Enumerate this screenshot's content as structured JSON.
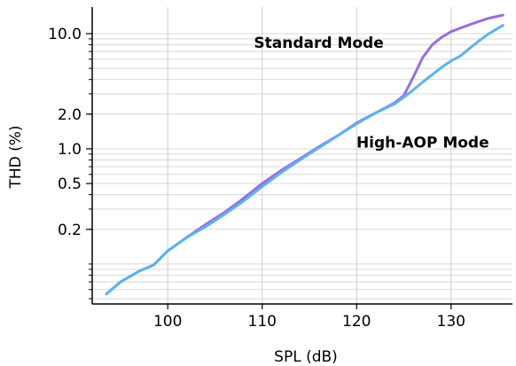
{
  "chart_data": {
    "type": "line",
    "title": "",
    "xlabel": "SPL (dB)",
    "ylabel": "THD (%)",
    "xlim": [
      92,
      136.5
    ],
    "ylim": [
      0.045,
      17
    ],
    "yscale": "log",
    "grid": true,
    "x_ticks": [
      100,
      110,
      120,
      130
    ],
    "x_tick_labels": [
      "100",
      "110",
      "120",
      "130"
    ],
    "y_ticks": [
      0.2,
      0.5,
      1.0,
      2.0,
      10.0
    ],
    "y_tick_labels": [
      "0.2",
      "0.5",
      "1.0",
      "2.0",
      "10.0"
    ],
    "annotations": [
      {
        "text": "Standard Mode",
        "x": 116,
        "y": 7.5
      },
      {
        "text": "High-AOP Mode",
        "x": 127,
        "y": 1.03
      }
    ],
    "series": [
      {
        "color": "#9b6cdf",
        "x": [
          93.5,
          95,
          97,
          98.5,
          100,
          102,
          104,
          106,
          108,
          110,
          112,
          114,
          116,
          118,
          120,
          122,
          124,
          125,
          126,
          127,
          128,
          129,
          130,
          131,
          132,
          133,
          134,
          135.5
        ],
        "y": [
          0.055,
          0.07,
          0.087,
          0.098,
          0.13,
          0.17,
          0.22,
          0.28,
          0.37,
          0.5,
          0.65,
          0.82,
          1.04,
          1.3,
          1.68,
          2.05,
          2.5,
          2.9,
          4.2,
          6.2,
          8.0,
          9.3,
          10.4,
          11.2,
          12.0,
          12.8,
          13.6,
          14.5
        ]
      },
      {
        "color": "#5ab4f0",
        "x": [
          93.5,
          95,
          97,
          98.5,
          100,
          102,
          104,
          106,
          108,
          110,
          112,
          114,
          116,
          118,
          120,
          122,
          124,
          125,
          126,
          127,
          128,
          129,
          130,
          131,
          132,
          133,
          134,
          135.5
        ],
        "y": [
          0.055,
          0.07,
          0.087,
          0.098,
          0.13,
          0.17,
          0.21,
          0.27,
          0.35,
          0.47,
          0.62,
          0.8,
          1.02,
          1.3,
          1.65,
          2.05,
          2.45,
          2.8,
          3.25,
          3.8,
          4.4,
          5.1,
          5.8,
          6.4,
          7.5,
          8.7,
          10.0,
          11.8
        ]
      }
    ]
  }
}
